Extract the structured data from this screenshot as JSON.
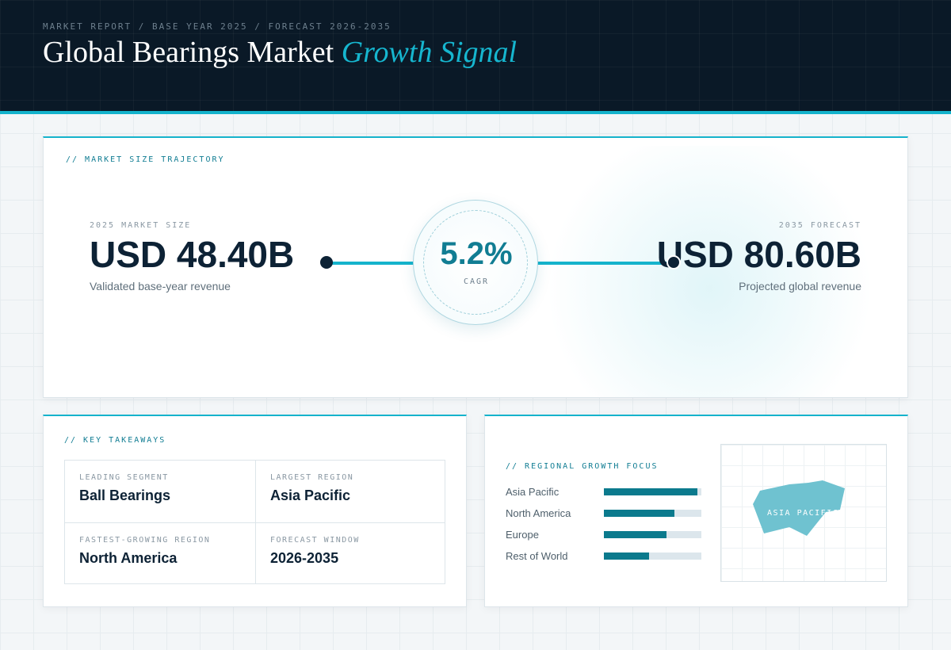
{
  "header": {
    "eyebrow": "MARKET REPORT / BASE YEAR 2025 / FORECAST 2026-2035",
    "title_main": "Global Bearings Market",
    "title_accent": "Growth Signal"
  },
  "trajectory": {
    "label": "// MARKET SIZE TRAJECTORY",
    "base": {
      "eyebrow": "2025 MARKET SIZE",
      "value": "USD 48.40B",
      "note": "Validated base-year revenue"
    },
    "forecast": {
      "eyebrow": "2035 FORECAST",
      "value": "USD 80.60B",
      "note": "Projected global revenue"
    },
    "cagr": {
      "value": "5.2%",
      "label": "CAGR"
    }
  },
  "takeaways": {
    "label": "// KEY TAKEAWAYS",
    "items": [
      {
        "label": "LEADING SEGMENT",
        "value": "Ball Bearings"
      },
      {
        "label": "LARGEST REGION",
        "value": "Asia Pacific"
      },
      {
        "label": "FASTEST-GROWING REGION",
        "value": "North America"
      },
      {
        "label": "FORECAST WINDOW",
        "value": "2026-2035"
      }
    ]
  },
  "regional": {
    "label": "// REGIONAL GROWTH FOCUS",
    "regions": [
      {
        "name": "Asia Pacific",
        "fill": 0.96
      },
      {
        "name": "North America",
        "fill": 0.72
      },
      {
        "name": "Europe",
        "fill": 0.64
      },
      {
        "name": "Rest of World",
        "fill": 0.46
      }
    ],
    "map_label": "ASIA PACIFIC"
  },
  "colors": {
    "accent": "#15b3cc",
    "bar_fill": "#0b7a8d",
    "navy": "#0a1927"
  }
}
